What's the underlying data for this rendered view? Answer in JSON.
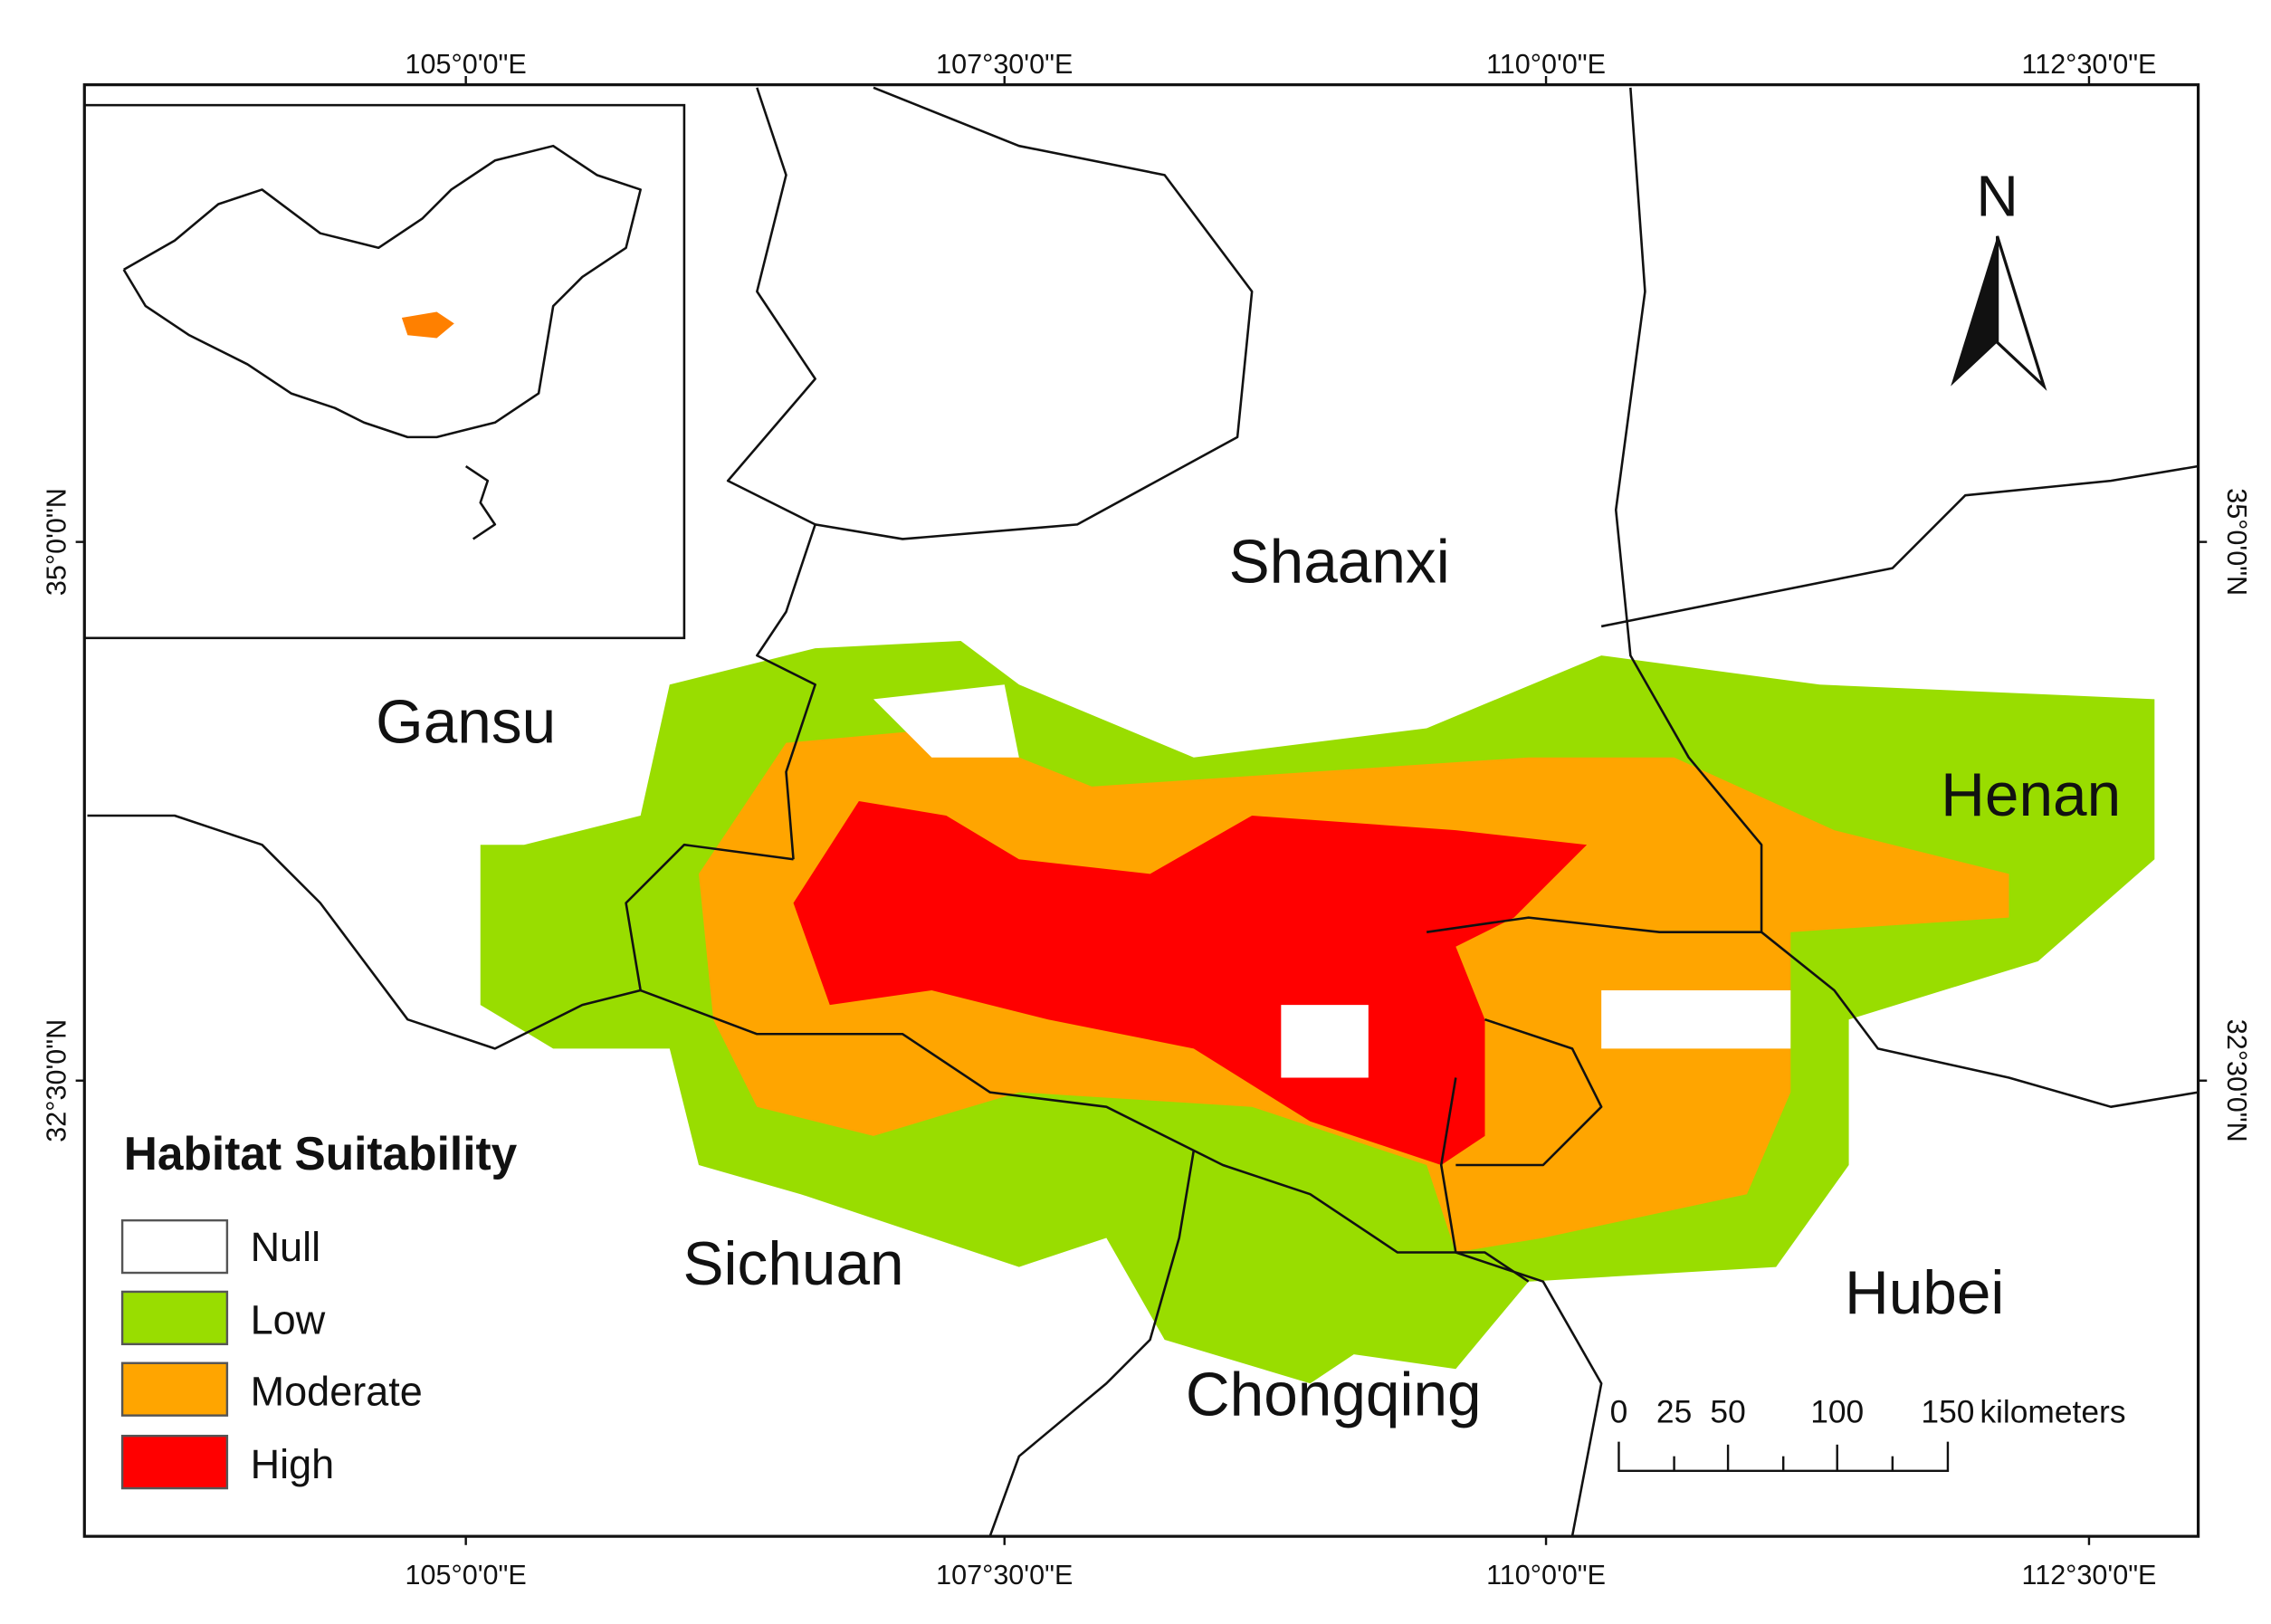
{
  "graticule": {
    "longitudes": [
      "105°0'0\"E",
      "107°30'0\"E",
      "110°0'0\"E",
      "112°30'0\"E"
    ],
    "latitudes": [
      "35°0'0\"N",
      "32°30'0\"N"
    ]
  },
  "provinces": [
    "Shaanxi",
    "Gansu",
    "Henan",
    "Sichuan",
    "Hubei",
    "Chongqing"
  ],
  "legend": {
    "title": "Habitat Suitability",
    "items": [
      "Null",
      "Low",
      "Moderate",
      "High"
    ]
  },
  "scale_bar": {
    "labels": [
      "0",
      "25",
      "50",
      "100",
      "150"
    ],
    "unit": "kilometers"
  },
  "north_label": "N"
}
